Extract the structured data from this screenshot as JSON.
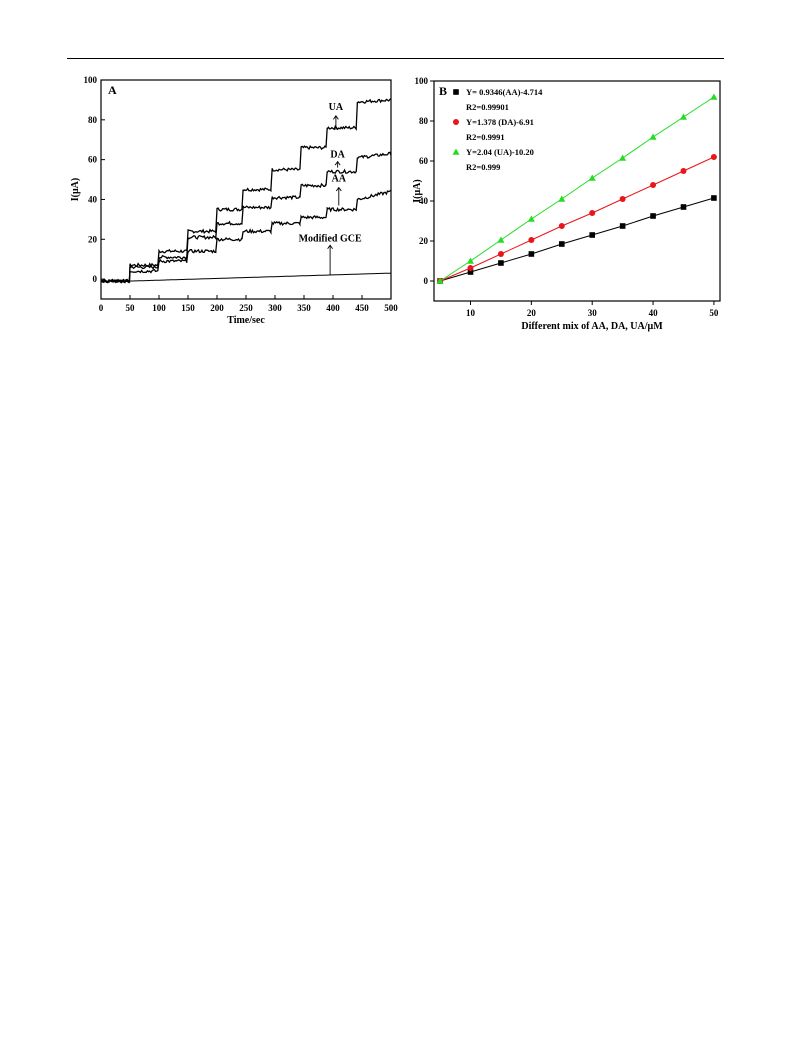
{
  "chart_data": [
    {
      "type": "line",
      "panel_label": "A",
      "xlabel": "Time/sec",
      "ylabel": "I(μA)",
      "xlim": [
        0,
        500
      ],
      "ylim": [
        -10,
        100
      ],
      "xticks": [
        0,
        50,
        100,
        150,
        200,
        250,
        300,
        350,
        400,
        450,
        500
      ],
      "yticks": [
        0,
        20,
        40,
        60,
        80,
        100
      ],
      "grid": false,
      "series": [
        {
          "name": "UA",
          "x": [
            0,
            49,
            50,
            98,
            100,
            148,
            150,
            198,
            200,
            243,
            245,
            293,
            295,
            343,
            345,
            388,
            390,
            440,
            442,
            500
          ],
          "y": [
            -1,
            -1,
            7,
            7,
            14,
            14,
            24,
            24,
            35,
            35,
            45,
            45,
            55,
            55,
            66,
            66,
            76,
            76,
            89,
            90
          ]
        },
        {
          "name": "DA",
          "x": [
            0,
            49,
            50,
            98,
            100,
            148,
            150,
            198,
            200,
            243,
            245,
            293,
            295,
            343,
            345,
            388,
            390,
            440,
            442,
            500
          ],
          "y": [
            -1,
            -1,
            6,
            6,
            11,
            11,
            21,
            21,
            28,
            28,
            36,
            36,
            41,
            41,
            47,
            47,
            54,
            54,
            61,
            63
          ]
        },
        {
          "name": "AA",
          "x": [
            0,
            49,
            50,
            98,
            100,
            148,
            150,
            198,
            200,
            243,
            245,
            293,
            295,
            343,
            345,
            388,
            390,
            440,
            442,
            500
          ],
          "y": [
            -1,
            -1,
            4,
            4,
            9,
            9,
            14,
            14,
            20,
            20,
            24,
            24,
            28,
            28,
            31,
            31,
            35,
            35,
            40,
            44
          ]
        },
        {
          "name": "Modified GCE",
          "x": [
            0,
            50,
            500
          ],
          "y": [
            -1,
            -1,
            3
          ]
        }
      ],
      "annotations": [
        {
          "text": "UA",
          "x": 405,
          "y": 85
        },
        {
          "text": "DA",
          "x": 408,
          "y": 61
        },
        {
          "text": "AA",
          "x": 410,
          "y": 49
        },
        {
          "text": "Modified GCE",
          "x": 395,
          "y": 19
        }
      ]
    },
    {
      "type": "scatter",
      "panel_label": "B",
      "xlabel": "Different mix of AA, DA, UA/μM",
      "ylabel": "I(μA)",
      "xlim": [
        4,
        51
      ],
      "ylim": [
        -10,
        100
      ],
      "xticks": [
        10,
        20,
        30,
        40,
        50
      ],
      "yticks": [
        0,
        20,
        40,
        60,
        80,
        100
      ],
      "grid": false,
      "legend_position": "top-left",
      "series": [
        {
          "name": "Y= 0.9346(AA)-4.714",
          "r2": "R2=0.99901",
          "color": "#000000",
          "marker": "square",
          "x": [
            5,
            10,
            15,
            20,
            25,
            30,
            35,
            40,
            45,
            50
          ],
          "y": [
            0,
            4.5,
            9,
            13.5,
            18.5,
            23,
            27.5,
            32.5,
            37,
            41.5
          ]
        },
        {
          "name": "Y=1.378 (DA)-6.91",
          "r2": "R2=0.9991",
          "color": "#e8151b",
          "marker": "circle",
          "x": [
            5,
            10,
            15,
            20,
            25,
            30,
            35,
            40,
            45,
            50
          ],
          "y": [
            0,
            6.5,
            13.5,
            20.5,
            27.5,
            34,
            41,
            48,
            55,
            62
          ]
        },
        {
          "name": "Y=2.04 (UA)-10.20",
          "r2": "R2=0.999",
          "color": "#22dd22",
          "marker": "triangle",
          "x": [
            5,
            10,
            15,
            20,
            25,
            30,
            35,
            40,
            45,
            50
          ],
          "y": [
            0,
            10,
            20.5,
            31,
            41,
            51.5,
            61.5,
            72,
            82,
            92
          ]
        }
      ]
    }
  ]
}
